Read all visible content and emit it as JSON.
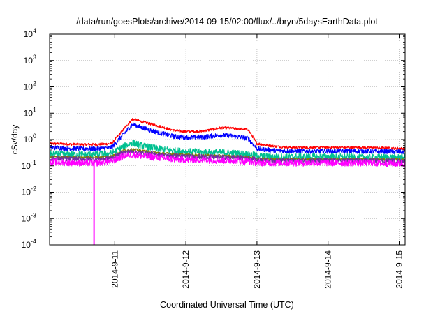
{
  "chart_data": {
    "type": "line",
    "title": "/data/run/goesPlots/archive/2014-09-15/02:00/flux/../bryn/5daysEarthData.plot",
    "xlabel": "Coordinated Universal Time (UTC)",
    "ylabel": "cSv/day",
    "yscale": "log",
    "ylim": [
      0.0001,
      10000
    ],
    "xlim": [
      "2014-09-10 02:00",
      "2014-09-15 02:00"
    ],
    "x_ticks": [
      "2014-9-11",
      "2014-9-12",
      "2014-9-13",
      "2014-9-14",
      "2014-9-15"
    ],
    "y_ticks": [
      {
        "value": 0.0001,
        "base": "10",
        "exp": "-4"
      },
      {
        "value": 0.001,
        "base": "10",
        "exp": "-3"
      },
      {
        "value": 0.01,
        "base": "10",
        "exp": "-2"
      },
      {
        "value": 0.1,
        "base": "10",
        "exp": "-1"
      },
      {
        "value": 1,
        "base": "10",
        "exp": "0"
      },
      {
        "value": 10,
        "base": "10",
        "exp": "1"
      },
      {
        "value": 100,
        "base": "10",
        "exp": "2"
      },
      {
        "value": 1000,
        "base": "10",
        "exp": "3"
      },
      {
        "value": 10000,
        "base": "10",
        "exp": "4"
      }
    ],
    "grid": true,
    "legend": "none",
    "x": [
      "2014-09-10 02:00",
      "2014-09-10 12:00",
      "2014-09-10 18:00",
      "2014-09-10 23:00",
      "2014-09-11 03:00",
      "2014-09-11 06:00",
      "2014-09-11 10:00",
      "2014-09-11 16:00",
      "2014-09-11 20:00",
      "2014-09-12 00:00",
      "2014-09-12 06:00",
      "2014-09-12 12:00",
      "2014-09-12 17:00",
      "2014-09-12 21:00",
      "2014-09-13 00:00",
      "2014-09-13 06:00",
      "2014-09-13 12:00",
      "2014-09-14 00:00",
      "2014-09-14 12:00",
      "2014-09-15 02:00"
    ],
    "series": [
      {
        "color": "#ff0000",
        "values": [
          0.7,
          0.65,
          0.65,
          0.7,
          2.5,
          6.0,
          4.5,
          3.0,
          2.2,
          2.0,
          2.1,
          2.8,
          2.6,
          2.4,
          0.7,
          0.55,
          0.5,
          0.5,
          0.5,
          0.45
        ]
      },
      {
        "color": "#0000ff",
        "values": [
          0.5,
          0.45,
          0.45,
          0.5,
          1.6,
          3.8,
          2.6,
          1.7,
          1.3,
          1.2,
          1.25,
          1.5,
          1.3,
          1.1,
          0.45,
          0.38,
          0.36,
          0.36,
          0.36,
          0.34
        ]
      },
      {
        "color": "#00c090",
        "values": [
          0.28,
          0.27,
          0.27,
          0.3,
          0.55,
          0.75,
          0.55,
          0.42,
          0.38,
          0.35,
          0.33,
          0.32,
          0.3,
          0.28,
          0.24,
          0.22,
          0.22,
          0.22,
          0.21,
          0.21
        ]
      },
      {
        "color": "#808000",
        "values": [
          0.22,
          0.21,
          0.21,
          0.23,
          0.38,
          0.42,
          0.36,
          0.3,
          0.28,
          0.26,
          0.25,
          0.24,
          0.23,
          0.22,
          0.19,
          0.18,
          0.18,
          0.18,
          0.18,
          0.17
        ]
      },
      {
        "color": "#7030a0",
        "values": [
          0.19,
          0.18,
          0.18,
          0.2,
          0.32,
          0.35,
          0.3,
          0.26,
          0.24,
          0.23,
          0.22,
          0.21,
          0.21,
          0.2,
          0.17,
          0.16,
          0.16,
          0.16,
          0.16,
          0.15
        ]
      },
      {
        "color": "#ff00ff",
        "values": [
          0.14,
          0.13,
          0.13,
          0.15,
          0.24,
          0.27,
          0.23,
          0.2,
          0.18,
          0.17,
          0.17,
          0.16,
          0.16,
          0.15,
          0.13,
          0.13,
          0.13,
          0.13,
          0.13,
          0.12
        ]
      }
    ],
    "dropout": {
      "series_color": "#ff00ff",
      "x": "2014-09-10 17:00",
      "from": 0.14,
      "to": 0.0001
    }
  }
}
